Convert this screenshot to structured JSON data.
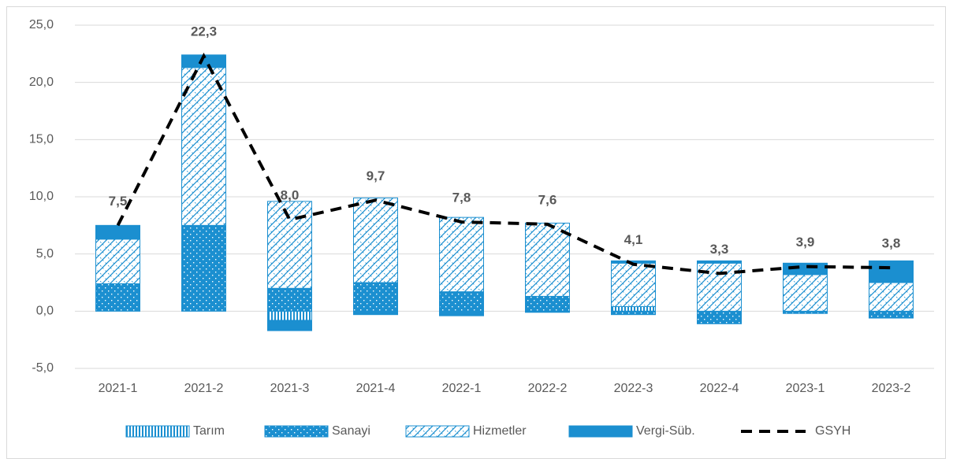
{
  "chart_data": {
    "type": "bar",
    "stacked": true,
    "categories": [
      "2021-1",
      "2021-2",
      "2021-3",
      "2021-4",
      "2022-1",
      "2022-2",
      "2022-3",
      "2022-4",
      "2023-1",
      "2023-2"
    ],
    "series": [
      {
        "name": "Tarım",
        "color": "#1b8fd0",
        "pattern": "vertical-lines",
        "values": [
          0.0,
          0.0,
          -0.8,
          0.0,
          0.0,
          0.0,
          0.4,
          0.0,
          0.0,
          0.0
        ]
      },
      {
        "name": "Sanayi",
        "color": "#1b8fd0",
        "pattern": "dots",
        "values": [
          2.4,
          7.5,
          2.0,
          2.5,
          1.7,
          1.3,
          -0.3,
          -1.1,
          -0.2,
          -0.6
        ]
      },
      {
        "name": "Hizmetler",
        "color": "#1b8fd0",
        "pattern": "crosshatch",
        "values": [
          3.9,
          13.8,
          7.6,
          7.4,
          6.5,
          6.4,
          3.8,
          4.2,
          3.2,
          2.5
        ]
      },
      {
        "name": "Vergi-Süb.",
        "color": "#1b8fd0",
        "pattern": "solid",
        "values": [
          1.2,
          1.1,
          -0.9,
          -0.3,
          -0.4,
          -0.1,
          0.2,
          0.2,
          1.0,
          1.9
        ]
      },
      {
        "name": "GSYH",
        "color": "#000000",
        "type": "line",
        "dashed": true,
        "values": [
          7.5,
          22.3,
          8.0,
          9.7,
          7.8,
          7.6,
          4.1,
          3.3,
          3.9,
          3.8
        ],
        "value_labels": [
          "7,5",
          "22,3",
          "8,0",
          "9,7",
          "7,8",
          "7,6",
          "4,1",
          "3,3",
          "3,9",
          "3,8"
        ]
      }
    ],
    "ylim": [
      -5,
      25
    ],
    "yticks": [
      {
        "value": -5,
        "label": "-5,0"
      },
      {
        "value": 0,
        "label": "0,0"
      },
      {
        "value": 5,
        "label": "5,0"
      },
      {
        "value": 10,
        "label": "10,0"
      },
      {
        "value": 15,
        "label": "15,0"
      },
      {
        "value": 20,
        "label": "20,0"
      },
      {
        "value": 25,
        "label": "25,0"
      }
    ],
    "grid": true,
    "legend": "bottom"
  }
}
